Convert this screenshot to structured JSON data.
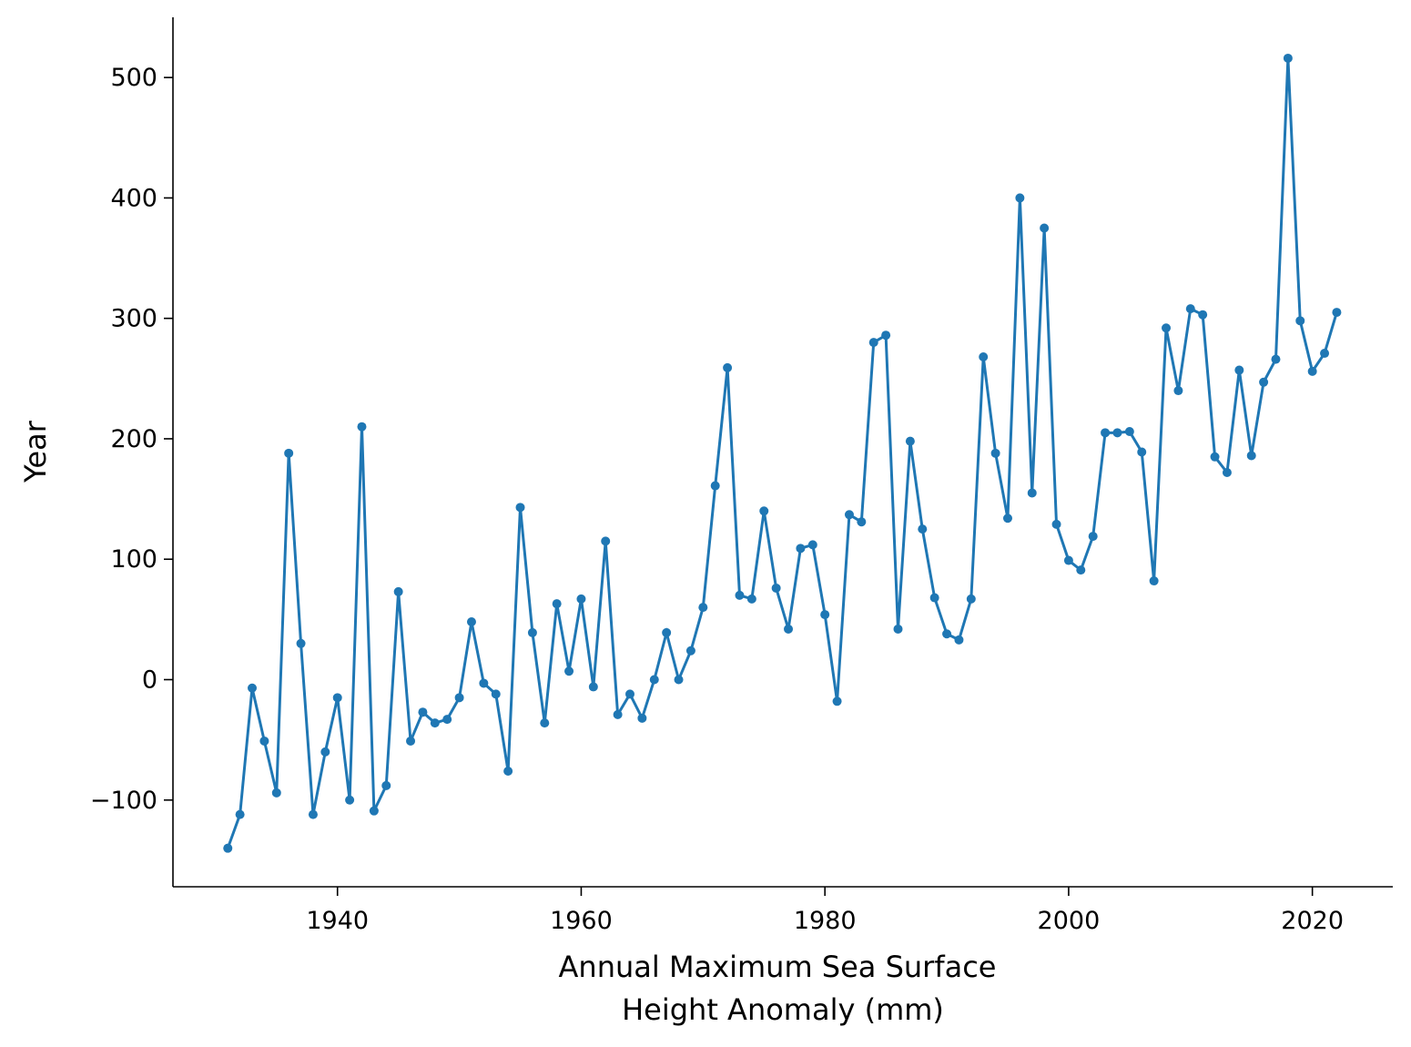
{
  "chart_data": {
    "type": "line",
    "xlabel_lines": [
      "Annual Maximum Sea Surface",
      "Height Anomaly (mm)"
    ],
    "ylabel": "Year",
    "xlim": [
      1926.5,
      2026.6
    ],
    "ylim": [
      -172,
      550
    ],
    "x_ticks": [
      1940,
      1960,
      1980,
      2000,
      2020
    ],
    "y_ticks": [
      -100,
      0,
      100,
      200,
      300,
      400,
      500
    ],
    "x_tick_labels": [
      "1940",
      "1960",
      "1980",
      "2000",
      "2020"
    ],
    "y_tick_labels": [
      "−100",
      "0",
      "100",
      "200",
      "300",
      "400",
      "500"
    ],
    "grid": false,
    "legend": "none",
    "series_color": "#1f77b4",
    "x": [
      1931,
      1932,
      1933,
      1934,
      1935,
      1936,
      1937,
      1938,
      1939,
      1940,
      1941,
      1942,
      1943,
      1944,
      1945,
      1946,
      1947,
      1948,
      1949,
      1950,
      1951,
      1952,
      1953,
      1954,
      1955,
      1956,
      1957,
      1958,
      1959,
      1960,
      1961,
      1962,
      1963,
      1964,
      1965,
      1966,
      1967,
      1968,
      1969,
      1970,
      1971,
      1972,
      1973,
      1974,
      1975,
      1976,
      1977,
      1978,
      1979,
      1980,
      1981,
      1982,
      1983,
      1984,
      1985,
      1986,
      1987,
      1988,
      1989,
      1990,
      1991,
      1992,
      1993,
      1994,
      1995,
      1996,
      1997,
      1998,
      1999,
      2000,
      2001,
      2002,
      2003,
      2004,
      2005,
      2006,
      2007,
      2008,
      2009,
      2010,
      2011,
      2012,
      2013,
      2014,
      2015,
      2016,
      2017,
      2018,
      2019,
      2020,
      2021,
      2022
    ],
    "y": [
      -140,
      -112,
      -7,
      -51,
      -94,
      188,
      30,
      -112,
      -60,
      -15,
      -100,
      210,
      -109,
      -88,
      73,
      -51,
      -27,
      -36,
      -33,
      -15,
      48,
      -3,
      -12,
      -76,
      143,
      39,
      -36,
      63,
      7,
      67,
      -6,
      115,
      -29,
      -12,
      -32,
      0,
      39,
      0,
      24,
      60,
      161,
      259,
      70,
      67,
      140,
      76,
      42,
      109,
      112,
      54,
      -18,
      137,
      131,
      280,
      286,
      42,
      198,
      125,
      68,
      38,
      33,
      67,
      268,
      188,
      134,
      400,
      155,
      375,
      129,
      99,
      91,
      119,
      205,
      205,
      206,
      189,
      82,
      292,
      240,
      308,
      303,
      185,
      172,
      257,
      186,
      247,
      266,
      516,
      298,
      256,
      271,
      305
    ]
  }
}
